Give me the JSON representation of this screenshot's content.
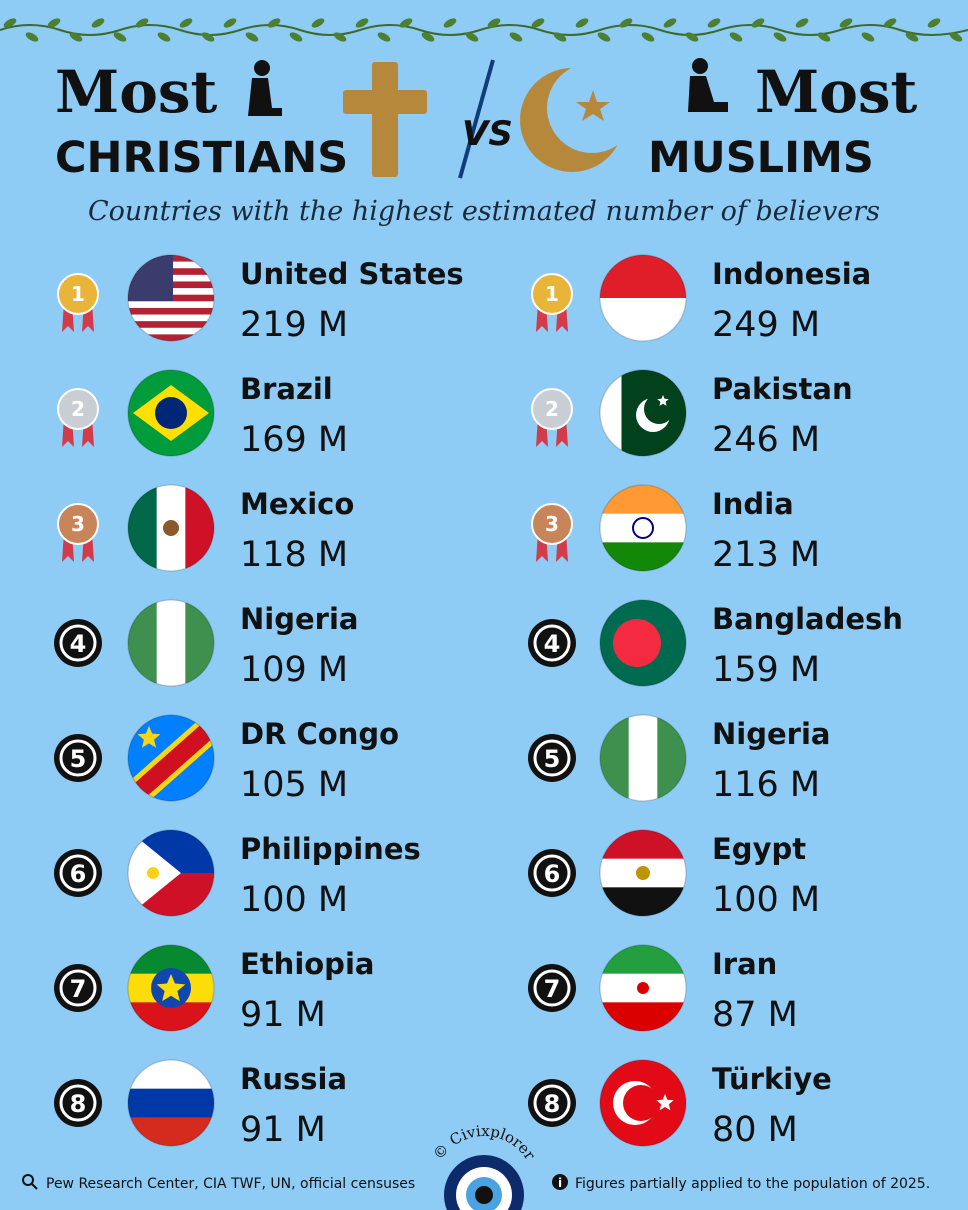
{
  "header": {
    "left_title_top": "Most",
    "left_title_bottom": "CHRISTIANS",
    "versus": "VS",
    "right_title_top": "Most",
    "right_title_bottom": "MUSLIMS",
    "subtitle": "Countries with the highest estimated number of believers"
  },
  "christians": [
    {
      "rank": "1",
      "country": "United States",
      "value": "219 M"
    },
    {
      "rank": "2",
      "country": "Brazil",
      "value": "169 M"
    },
    {
      "rank": "3",
      "country": "Mexico",
      "value": "118 M"
    },
    {
      "rank": "4",
      "country": "Nigeria",
      "value": "109 M"
    },
    {
      "rank": "5",
      "country": "DR Congo",
      "value": "105 M"
    },
    {
      "rank": "6",
      "country": "Philippines",
      "value": "100 M"
    },
    {
      "rank": "7",
      "country": "Ethiopia",
      "value": "91 M"
    },
    {
      "rank": "8",
      "country": "Russia",
      "value": "91 M"
    }
  ],
  "muslims": [
    {
      "rank": "1",
      "country": "Indonesia",
      "value": "249 M"
    },
    {
      "rank": "2",
      "country": "Pakistan",
      "value": "246 M"
    },
    {
      "rank": "3",
      "country": "India",
      "value": "213 M"
    },
    {
      "rank": "4",
      "country": "Bangladesh",
      "value": "159 M"
    },
    {
      "rank": "5",
      "country": "Nigeria",
      "value": "116 M"
    },
    {
      "rank": "6",
      "country": "Egypt",
      "value": "100 M"
    },
    {
      "rank": "7",
      "country": "Iran",
      "value": "87 M"
    },
    {
      "rank": "8",
      "country": "Türkiye",
      "value": "80 M"
    }
  ],
  "footer": {
    "source": "Pew Research Center, CIA TWF, UN, official censuses",
    "note": "Figures partially applied to the population of 2025.",
    "credit": "© Civixplorer"
  }
}
